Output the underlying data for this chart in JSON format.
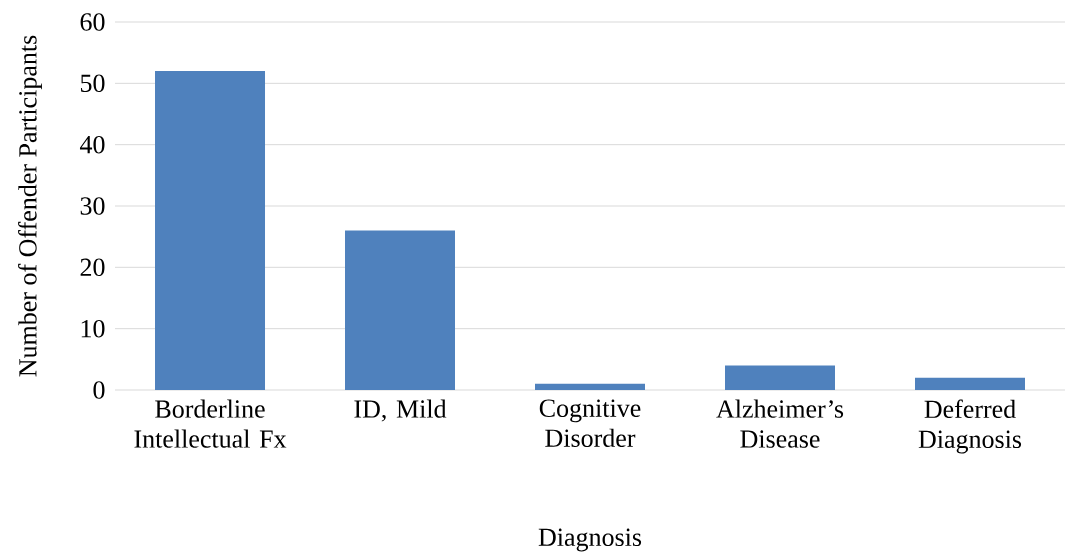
{
  "chart_data": {
    "type": "bar",
    "xlabel": "Diagnosis",
    "ylabel": "Number of Offender Participants",
    "categories": [
      "Borderline Intellectual Fx",
      "ID, Mild",
      "Cognitive Disorder",
      "Alzheimer’s Disease",
      "Deferred Diagnosis"
    ],
    "values": [
      52,
      26,
      1,
      4,
      2
    ],
    "color": "#4f81bd",
    "ylim": [
      0,
      60
    ],
    "yticks": [
      0,
      10,
      20,
      30,
      40,
      50,
      60
    ],
    "grid": "y"
  }
}
